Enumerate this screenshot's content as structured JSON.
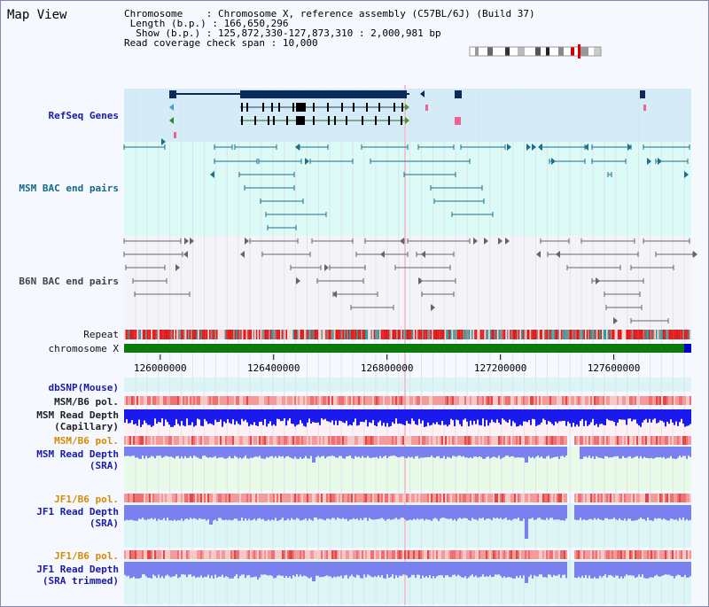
{
  "app": {
    "title": "Map View"
  },
  "info": {
    "chromosome_label": "Chromosome",
    "chromosome_value": "Chromosome X, reference assembly (C57BL/6J) (Build 37)",
    "length_label": "Length (b.p.)",
    "length_value": "166,650,296",
    "show_label": "Show (b.p.)",
    "show_value": "125,872,330-127,873,310 : 2,000,981 bp",
    "coverage_label": "Read coverage check span",
    "coverage_value": "10,000"
  },
  "tracks": {
    "refseq": "RefSeq Genes",
    "msm_bac": "MSM BAC end pairs",
    "b6n_bac": "B6N BAC end pairs",
    "repeat": "Repeat",
    "chromosome": "chromosome X",
    "dbsnp": "dbSNP(Mouse)",
    "msm_b6_pol_1": "MSM/B6 pol.",
    "msm_depth_cap_1": "MSM Read Depth",
    "msm_depth_cap_2": "(Capillary)",
    "msm_b6_pol_2": "MSM/B6 pol.",
    "msm_depth_sra_1": "MSM Read Depth",
    "msm_depth_sra_2": "(SRA)",
    "jf1_pol_1": "JF1/B6 pol.",
    "jf1_depth_1": "JF1 Read Depth",
    "jf1_depth_2": "(SRA)",
    "jf1_pol_2": "JF1/B6 pol.",
    "jf1_trim_1": "JF1 Read Depth",
    "jf1_trim_2": "(SRA trimmed)"
  },
  "axis": {
    "ticks": [
      "126000000",
      "126400000",
      "126800000",
      "127200000",
      "127600000"
    ],
    "tick_values": [
      126000000,
      126400000,
      126800000,
      127200000,
      127600000
    ],
    "view_start": 125872330,
    "view_end": 127873310
  },
  "colors": {
    "refseq_bg": "#d4ecf8",
    "msm_bg": "#dcfaf6",
    "b6n_bg": "#f4f4f8",
    "gene": "#0a2a5a",
    "msm_line": "#1e6e8e",
    "b6n_line": "#666666",
    "chromosome": "#0a7a0a",
    "depth_capillary": "#1a1aee",
    "depth_sra": "#7a80ee",
    "pol": "#f07070"
  }
}
